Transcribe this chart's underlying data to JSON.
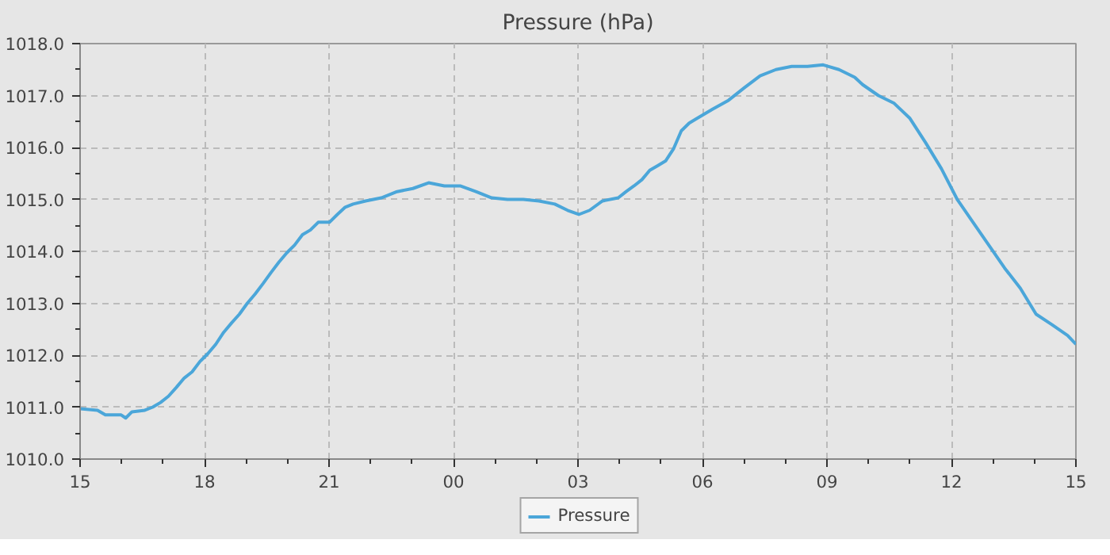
{
  "chart_data": {
    "type": "line",
    "title": "Pressure (hPa)",
    "x": [
      15.0,
      15.42,
      15.61,
      15.99,
      16.1,
      16.25,
      16.56,
      16.75,
      16.94,
      17.13,
      17.32,
      17.51,
      17.7,
      17.89,
      18.08,
      18.27,
      18.46,
      18.65,
      18.84,
      19.03,
      19.22,
      19.41,
      19.6,
      19.79,
      19.98,
      20.17,
      20.36,
      20.55,
      20.74,
      21.01,
      21.2,
      21.39,
      21.58,
      21.88,
      22.26,
      22.64,
      23.02,
      23.4,
      23.78,
      24.16,
      24.54,
      24.92,
      25.3,
      25.68,
      26.06,
      26.44,
      26.75,
      27.02,
      27.28,
      27.59,
      27.97,
      28.16,
      28.35,
      28.54,
      28.73,
      28.92,
      29.11,
      29.3,
      29.49,
      29.68,
      29.87,
      30.25,
      30.63,
      31.01,
      31.39,
      31.77,
      32.15,
      32.53,
      32.91,
      33.29,
      33.67,
      33.86,
      34.24,
      34.62,
      35.0,
      35.38,
      35.76,
      36.14,
      36.52,
      36.9,
      37.28,
      37.66,
      38.04,
      38.42,
      38.8,
      39.0
    ],
    "series": [
      {
        "name": "Pressure",
        "color": "#4ba6d9",
        "values": [
          1010.97,
          1010.94,
          1010.85,
          1010.85,
          1010.79,
          1010.91,
          1010.94,
          1011.0,
          1011.09,
          1011.21,
          1011.38,
          1011.56,
          1011.68,
          1011.88,
          1012.03,
          1012.21,
          1012.44,
          1012.62,
          1012.79,
          1013.0,
          1013.18,
          1013.38,
          1013.59,
          1013.79,
          1013.97,
          1014.12,
          1014.32,
          1014.41,
          1014.56,
          1014.56,
          1014.71,
          1014.85,
          1014.91,
          1014.97,
          1015.03,
          1015.15,
          1015.21,
          1015.32,
          1015.26,
          1015.26,
          1015.15,
          1015.03,
          1015.0,
          1015.0,
          1014.97,
          1014.91,
          1014.79,
          1014.71,
          1014.79,
          1014.97,
          1015.03,
          1015.15,
          1015.26,
          1015.38,
          1015.56,
          1015.65,
          1015.74,
          1015.97,
          1016.32,
          1016.47,
          1016.56,
          1016.74,
          1016.91,
          1017.15,
          1017.38,
          1017.5,
          1017.56,
          1017.56,
          1017.59,
          1017.5,
          1017.35,
          1017.21,
          1017.0,
          1016.85,
          1016.56,
          1016.09,
          1015.59,
          1015.0,
          1014.56,
          1014.12,
          1013.68,
          1013.29,
          1012.79,
          1012.59,
          1012.38,
          1012.21
        ]
      }
    ],
    "xlim": [
      15,
      39
    ],
    "xticks": [
      {
        "value": 15,
        "label": "15"
      },
      {
        "value": 18,
        "label": "18"
      },
      {
        "value": 21,
        "label": "21"
      },
      {
        "value": 24,
        "label": "00"
      },
      {
        "value": 27,
        "label": "03"
      },
      {
        "value": 30,
        "label": "06"
      },
      {
        "value": 33,
        "label": "09"
      },
      {
        "value": 36,
        "label": "12"
      },
      {
        "value": 39,
        "label": "15"
      }
    ],
    "ylim": [
      1010,
      1018
    ],
    "yticks": [
      {
        "value": 1010,
        "label": "1010.0"
      },
      {
        "value": 1011,
        "label": "1011.0"
      },
      {
        "value": 1012,
        "label": "1012.0"
      },
      {
        "value": 1013,
        "label": "1013.0"
      },
      {
        "value": 1014,
        "label": "1014.0"
      },
      {
        "value": 1015,
        "label": "1015.0"
      },
      {
        "value": 1016,
        "label": "1016.0"
      },
      {
        "value": 1017,
        "label": "1017.0"
      },
      {
        "value": 1018,
        "label": "1018.0"
      }
    ],
    "grid": true,
    "legend": "bottom",
    "marker": "none",
    "line_style": "solid"
  }
}
